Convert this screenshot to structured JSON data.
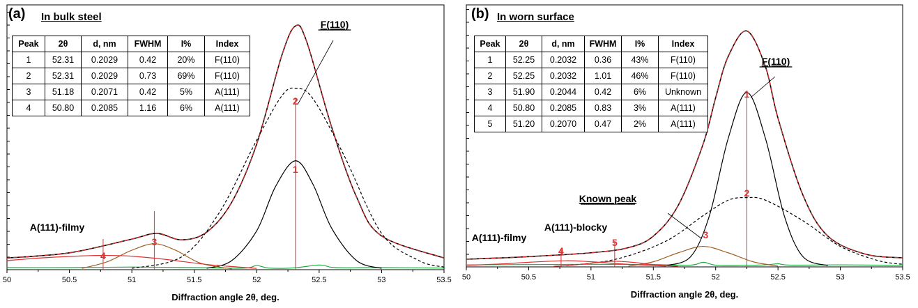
{
  "chart_data": [
    {
      "type": "line",
      "panel_label": "(a)",
      "title": "In bulk steel",
      "xlabel": "Diffraction angle 2θ, deg.",
      "ylabel": "",
      "xlim": [
        50,
        53.5
      ],
      "x_ticks": [
        "50",
        "50.5",
        "51",
        "51.5",
        "52",
        "52.5",
        "53",
        "53.5"
      ],
      "grid": false,
      "table": {
        "headers": [
          "Peak",
          "2θ",
          "d, nm",
          "FWHM",
          "I%",
          "Index"
        ],
        "rows": [
          [
            "1",
            "52.31",
            "0.2029",
            "0.42",
            "20%",
            "F(110)"
          ],
          [
            "2",
            "52.31",
            "0.2029",
            "0.73",
            "69%",
            "F(110)"
          ],
          [
            "3",
            "51.18",
            "0.2071",
            "0.42",
            "5%",
            "A(111)"
          ],
          [
            "4",
            "50.80",
            "0.2085",
            "1.16",
            "6%",
            "A(111)"
          ]
        ]
      },
      "annotations": [
        "F(110)",
        "A(111)-filmy"
      ],
      "peak_numbers": [
        "1",
        "2",
        "3",
        "4"
      ],
      "series": [
        {
          "role": "measured",
          "color": "#000000",
          "style": "solid",
          "x": [
            50,
            50.5,
            51,
            51.2,
            51.4,
            51.6,
            51.8,
            52,
            52.2,
            52.31,
            52.4,
            52.6,
            52.8,
            53,
            53.5
          ],
          "values": [
            4.5,
            6.5,
            11.8,
            14.0,
            11.5,
            14.5,
            26.0,
            48.5,
            82.5,
            94.0,
            88.0,
            55.0,
            28.0,
            13.0,
            4.5
          ]
        },
        {
          "role": "fitted",
          "color": "#e03030",
          "style": "dashed",
          "x": [
            50,
            50.5,
            51,
            51.2,
            51.4,
            51.6,
            51.8,
            52,
            52.2,
            52.31,
            52.4,
            52.6,
            52.8,
            53,
            53.5
          ],
          "values": [
            4.5,
            6.5,
            11.8,
            14.0,
            11.5,
            14.5,
            26.0,
            48.5,
            82.5,
            94.0,
            88.0,
            55.0,
            28.0,
            13.0,
            4.5
          ]
        },
        {
          "role": "peak",
          "name": "1",
          "color": "#000000",
          "style": "solid",
          "x": [
            51.6,
            51.8,
            52.0,
            52.15,
            52.31,
            52.45,
            52.6,
            52.8,
            53.0
          ],
          "values": [
            0.5,
            3.5,
            15.0,
            32.0,
            42.0,
            33.0,
            16.0,
            3.5,
            0.5
          ]
        },
        {
          "role": "peak",
          "name": "2",
          "color": "#000000",
          "style": "dashed",
          "x": [
            51.0,
            51.4,
            51.7,
            52.0,
            52.2,
            52.31,
            52.45,
            52.7,
            53.0,
            53.3,
            53.5
          ],
          "values": [
            0.5,
            5.0,
            22.0,
            50.0,
            67.0,
            70.0,
            66.0,
            44.0,
            14.0,
            3.5,
            1.0
          ]
        },
        {
          "role": "peak",
          "name": "3",
          "color": "#a0622a",
          "style": "solid",
          "x": [
            50.6,
            50.8,
            51.0,
            51.18,
            51.35,
            51.55,
            51.8
          ],
          "values": [
            0.5,
            3.0,
            7.5,
            10.0,
            7.5,
            2.5,
            0.3
          ]
        },
        {
          "role": "peak",
          "name": "4",
          "color": "#e03030",
          "style": "solid",
          "x": [
            50.0,
            50.3,
            50.6,
            50.8,
            51.0,
            51.3,
            51.6,
            52.0
          ],
          "values": [
            3.5,
            4.6,
            5.3,
            5.5,
            5.2,
            3.8,
            2.0,
            0.5
          ]
        },
        {
          "role": "residual",
          "color": "#22aa44",
          "style": "solid",
          "x": [
            50,
            50.5,
            51,
            51.5,
            51.9,
            52.0,
            52.1,
            52.3,
            52.5,
            52.6,
            52.7,
            53.0,
            53.5
          ],
          "values": [
            0.8,
            0.8,
            1.0,
            0.8,
            0.6,
            1.6,
            0.6,
            0.7,
            1.8,
            0.9,
            0.7,
            0.8,
            0.6
          ]
        }
      ]
    },
    {
      "type": "line",
      "panel_label": "(b)",
      "title": "In worn surface",
      "xlabel": "Diffraction angle 2θ, deg.",
      "ylabel": "",
      "xlim": [
        50,
        53.5
      ],
      "x_ticks": [
        "50",
        "50.5",
        "51",
        "51.5",
        "52",
        "52.5",
        "53",
        "53.5"
      ],
      "grid": false,
      "table": {
        "headers": [
          "Peak",
          "2θ",
          "d, nm",
          "FWHM",
          "I%",
          "Index"
        ],
        "rows": [
          [
            "1",
            "52.25",
            "0.2032",
            "0.36",
            "43%",
            "F(110)"
          ],
          [
            "2",
            "52.25",
            "0.2032",
            "1.01",
            "46%",
            "F(110)"
          ],
          [
            "3",
            "51.90",
            "0.2044",
            "0.42",
            "6%",
            "Unknown"
          ],
          [
            "4",
            "50.80",
            "0.2085",
            "0.83",
            "3%",
            "A(111)"
          ],
          [
            "5",
            "51.20",
            "0.2070",
            "0.47",
            "2%",
            "A(111)"
          ]
        ]
      },
      "annotations": [
        "F(110)",
        "Known peak",
        "A(111)-filmy",
        "A(111)-blocky"
      ],
      "peak_numbers": [
        "1",
        "2",
        "3",
        "4",
        "5"
      ],
      "series": [
        {
          "role": "measured",
          "color": "#000000",
          "style": "solid",
          "x": [
            50,
            50.5,
            51,
            51.3,
            51.5,
            51.7,
            51.9,
            52.0,
            52.1,
            52.25,
            52.4,
            52.5,
            52.7,
            52.9,
            53.2,
            53.5
          ],
          "values": [
            3.0,
            4.0,
            5.5,
            7.5,
            12.0,
            24.0,
            48.0,
            66.0,
            82.0,
            92.0,
            78.0,
            58.0,
            28.0,
            12.0,
            5.0,
            3.5
          ]
        },
        {
          "role": "fitted",
          "color": "#e03030",
          "style": "dashed",
          "x": [
            50,
            50.5,
            51,
            51.3,
            51.5,
            51.7,
            51.9,
            52.0,
            52.1,
            52.25,
            52.4,
            52.5,
            52.7,
            52.9,
            53.2,
            53.5
          ],
          "values": [
            3.0,
            4.0,
            5.5,
            7.5,
            12.0,
            24.0,
            48.0,
            66.0,
            82.0,
            92.0,
            78.0,
            58.0,
            28.0,
            12.0,
            5.0,
            3.5
          ]
        },
        {
          "role": "peak",
          "name": "1",
          "color": "#000000",
          "style": "solid",
          "x": [
            51.6,
            51.8,
            51.95,
            52.1,
            52.25,
            52.4,
            52.55,
            52.7,
            52.9
          ],
          "values": [
            0.5,
            4.0,
            20.0,
            50.0,
            68.0,
            50.0,
            20.0,
            4.0,
            0.5
          ]
        },
        {
          "role": "peak",
          "name": "2",
          "color": "#000000",
          "style": "dashed",
          "x": [
            50.8,
            51.2,
            51.6,
            51.9,
            52.1,
            52.25,
            52.4,
            52.7,
            53.0,
            53.3,
            53.5
          ],
          "values": [
            0.5,
            3.0,
            10.0,
            20.0,
            26.0,
            27.0,
            26.0,
            18.0,
            8.0,
            2.5,
            1.0
          ]
        },
        {
          "role": "peak",
          "name": "3",
          "color": "#a0622a",
          "style": "solid",
          "x": [
            51.3,
            51.5,
            51.7,
            51.9,
            52.1,
            52.3,
            52.5
          ],
          "values": [
            0.3,
            2.0,
            5.5,
            8.0,
            5.5,
            2.0,
            0.3
          ]
        },
        {
          "role": "peak",
          "name": "4",
          "color": "#e03030",
          "style": "solid",
          "x": [
            50.0,
            50.3,
            50.5,
            50.8,
            51.0,
            51.3,
            51.6
          ],
          "values": [
            0.6,
            1.2,
            1.8,
            2.4,
            2.0,
            1.0,
            0.3
          ]
        },
        {
          "role": "peak",
          "name": "5",
          "color": "#e03030",
          "style": "solid",
          "x": [
            50.7,
            50.9,
            51.05,
            51.2,
            51.35,
            51.5,
            51.7
          ],
          "values": [
            0.2,
            0.9,
            1.7,
            2.2,
            1.7,
            0.9,
            0.2
          ]
        },
        {
          "role": "residual",
          "color": "#22aa44",
          "style": "solid",
          "x": [
            50,
            50.5,
            51,
            51.5,
            51.8,
            51.9,
            52.0,
            52.2,
            52.4,
            52.5,
            52.6,
            53.0,
            53.5
          ],
          "values": [
            0.8,
            0.9,
            1.0,
            0.9,
            0.7,
            1.8,
            0.7,
            0.6,
            0.8,
            1.2,
            0.7,
            0.8,
            0.6
          ]
        }
      ]
    }
  ]
}
